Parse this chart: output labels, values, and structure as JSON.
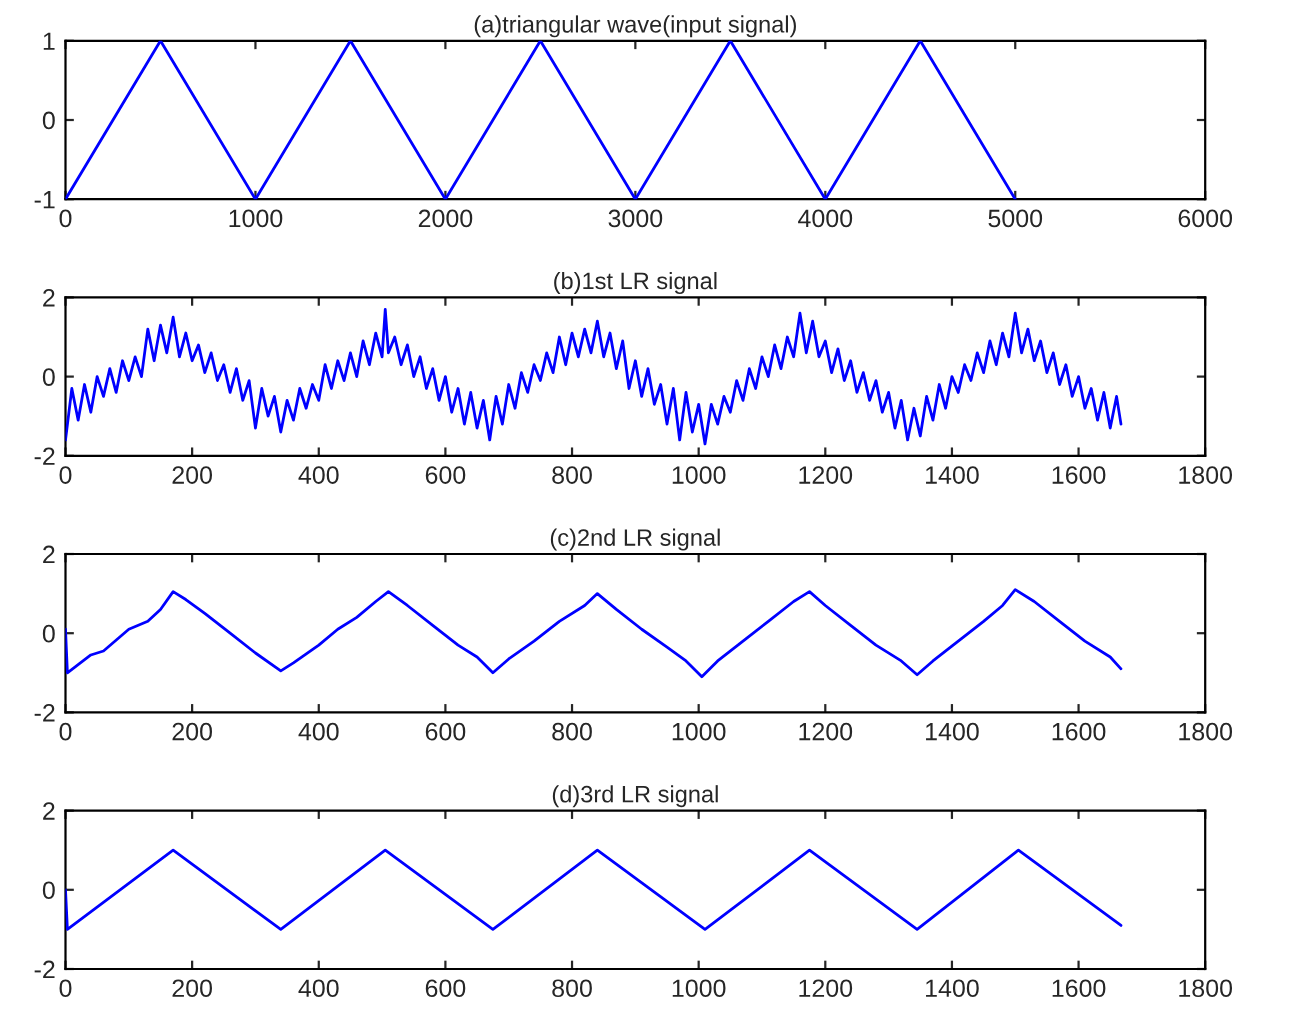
{
  "chart_data": [
    {
      "type": "line",
      "title": "(a)triangular wave(input signal)",
      "xlim": [
        0,
        6000
      ],
      "xticks": [
        0,
        1000,
        2000,
        3000,
        4000,
        5000,
        6000
      ],
      "ylim": [
        -1,
        1
      ],
      "yticks": [
        -1,
        0,
        1
      ],
      "grid": false,
      "legend": false,
      "series": [
        {
          "color": "#0000ff",
          "x": [
            0,
            500,
            1000,
            1500,
            2000,
            2500,
            3000,
            3500,
            4000,
            4500,
            5000
          ],
          "values": [
            -1,
            1,
            -1,
            1,
            -1,
            1,
            -1,
            1,
            -1,
            1,
            -1
          ]
        }
      ]
    },
    {
      "type": "line",
      "title": "(b)1st LR signal",
      "xlim": [
        0,
        1800
      ],
      "xticks": [
        0,
        200,
        400,
        600,
        800,
        1000,
        1200,
        1400,
        1600,
        1800
      ],
      "ylim": [
        -2,
        2
      ],
      "yticks": [
        -2,
        0,
        2
      ],
      "grid": false,
      "legend": false,
      "series": [
        {
          "color": "#0000ff",
          "x": [
            0,
            10,
            20,
            30,
            40,
            50,
            60,
            70,
            80,
            90,
            100,
            110,
            120,
            130,
            140,
            150,
            160,
            170,
            180,
            190,
            200,
            210,
            220,
            230,
            240,
            250,
            260,
            270,
            280,
            290,
            300,
            310,
            320,
            330,
            340,
            350,
            360,
            370,
            380,
            390,
            400,
            410,
            420,
            430,
            440,
            450,
            460,
            470,
            480,
            490,
            500,
            505,
            510,
            520,
            530,
            540,
            550,
            560,
            570,
            580,
            590,
            600,
            610,
            620,
            630,
            640,
            650,
            660,
            670,
            680,
            690,
            700,
            710,
            720,
            730,
            740,
            750,
            760,
            770,
            780,
            790,
            800,
            810,
            820,
            830,
            840,
            850,
            860,
            870,
            880,
            890,
            900,
            910,
            920,
            930,
            940,
            950,
            960,
            970,
            980,
            990,
            1000,
            1010,
            1020,
            1030,
            1040,
            1050,
            1060,
            1070,
            1080,
            1090,
            1100,
            1110,
            1120,
            1130,
            1140,
            1150,
            1160,
            1170,
            1180,
            1190,
            1200,
            1210,
            1220,
            1230,
            1240,
            1250,
            1260,
            1270,
            1280,
            1290,
            1300,
            1310,
            1320,
            1330,
            1340,
            1350,
            1360,
            1370,
            1380,
            1390,
            1400,
            1410,
            1420,
            1430,
            1440,
            1450,
            1460,
            1470,
            1480,
            1490,
            1500,
            1510,
            1520,
            1530,
            1540,
            1550,
            1560,
            1570,
            1580,
            1590,
            1600,
            1610,
            1620,
            1630,
            1640,
            1650,
            1660,
            1667
          ],
          "values": [
            -1.6,
            -0.3,
            -1.1,
            -0.2,
            -0.9,
            0.0,
            -0.5,
            0.2,
            -0.4,
            0.4,
            -0.1,
            0.5,
            0.0,
            1.2,
            0.4,
            1.3,
            0.6,
            1.5,
            0.5,
            1.1,
            0.4,
            0.8,
            0.1,
            0.6,
            -0.1,
            0.3,
            -0.4,
            0.2,
            -0.6,
            -0.1,
            -1.3,
            -0.3,
            -1.0,
            -0.5,
            -1.4,
            -0.6,
            -1.1,
            -0.3,
            -0.8,
            -0.2,
            -0.6,
            0.3,
            -0.3,
            0.4,
            -0.1,
            0.6,
            0.0,
            0.9,
            0.3,
            1.1,
            0.5,
            1.7,
            0.6,
            1.0,
            0.3,
            0.8,
            0.0,
            0.5,
            -0.3,
            0.2,
            -0.6,
            0.0,
            -0.9,
            -0.3,
            -1.2,
            -0.4,
            -1.3,
            -0.6,
            -1.6,
            -0.5,
            -1.2,
            -0.2,
            -0.8,
            0.1,
            -0.4,
            0.3,
            -0.1,
            0.6,
            0.1,
            1.0,
            0.3,
            1.1,
            0.5,
            1.2,
            0.6,
            1.4,
            0.5,
            1.1,
            0.2,
            0.9,
            -0.3,
            0.4,
            -0.5,
            0.2,
            -0.7,
            -0.2,
            -1.2,
            -0.3,
            -1.6,
            -0.4,
            -1.4,
            -0.7,
            -1.7,
            -0.7,
            -1.2,
            -0.5,
            -0.9,
            -0.1,
            -0.6,
            0.2,
            -0.3,
            0.5,
            0.0,
            0.8,
            0.2,
            1.0,
            0.5,
            1.6,
            0.6,
            1.4,
            0.5,
            0.9,
            0.1,
            0.7,
            -0.1,
            0.4,
            -0.4,
            0.1,
            -0.6,
            -0.1,
            -0.9,
            -0.4,
            -1.3,
            -0.6,
            -1.6,
            -0.8,
            -1.5,
            -0.5,
            -1.1,
            -0.2,
            -0.8,
            0.0,
            -0.4,
            0.3,
            -0.1,
            0.6,
            0.1,
            0.9,
            0.3,
            1.1,
            0.5,
            1.6,
            0.6,
            1.2,
            0.4,
            0.9,
            0.1,
            0.6,
            -0.2,
            0.3,
            -0.5,
            0.0,
            -0.8,
            -0.3,
            -1.1,
            -0.4,
            -1.3,
            -0.5,
            -1.2
          ]
        }
      ]
    },
    {
      "type": "line",
      "title": "(c)2nd LR signal",
      "xlim": [
        0,
        1800
      ],
      "xticks": [
        0,
        200,
        400,
        600,
        800,
        1000,
        1200,
        1400,
        1600,
        1800
      ],
      "ylim": [
        -2,
        2
      ],
      "yticks": [
        -2,
        0,
        2
      ],
      "grid": false,
      "legend": false,
      "series": [
        {
          "color": "#0000ff",
          "x": [
            0,
            3,
            40,
            60,
            100,
            130,
            150,
            170,
            190,
            220,
            260,
            300,
            340,
            360,
            400,
            430,
            460,
            490,
            510,
            540,
            580,
            620,
            650,
            675,
            700,
            740,
            780,
            820,
            840,
            870,
            910,
            950,
            980,
            1005,
            1030,
            1070,
            1110,
            1150,
            1175,
            1200,
            1240,
            1280,
            1320,
            1345,
            1370,
            1410,
            1450,
            1480,
            1500,
            1530,
            1570,
            1610,
            1650,
            1667
          ],
          "values": [
            0.1,
            -1.0,
            -0.55,
            -0.45,
            0.1,
            0.3,
            0.6,
            1.05,
            0.85,
            0.5,
            0.0,
            -0.5,
            -0.95,
            -0.75,
            -0.3,
            0.1,
            0.4,
            0.8,
            1.05,
            0.7,
            0.2,
            -0.3,
            -0.6,
            -1.0,
            -0.65,
            -0.2,
            0.3,
            0.7,
            1.0,
            0.6,
            0.1,
            -0.35,
            -0.7,
            -1.1,
            -0.7,
            -0.2,
            0.3,
            0.8,
            1.05,
            0.7,
            0.2,
            -0.3,
            -0.7,
            -1.05,
            -0.7,
            -0.2,
            0.3,
            0.7,
            1.1,
            0.8,
            0.3,
            -0.2,
            -0.6,
            -0.9
          ]
        }
      ]
    },
    {
      "type": "line",
      "title": "(d)3rd LR signal",
      "xlim": [
        0,
        1800
      ],
      "xticks": [
        0,
        200,
        400,
        600,
        800,
        1000,
        1200,
        1400,
        1600,
        1800
      ],
      "ylim": [
        -2,
        2
      ],
      "yticks": [
        -2,
        0,
        2
      ],
      "grid": false,
      "legend": false,
      "series": [
        {
          "color": "#0000ff",
          "x": [
            0,
            3,
            170,
            340,
            505,
            675,
            840,
            1010,
            1175,
            1345,
            1505,
            1667
          ],
          "values": [
            0.0,
            -1.0,
            1.0,
            -1.0,
            1.0,
            -1.0,
            1.0,
            -1.0,
            1.0,
            -1.0,
            1.0,
            -0.9
          ]
        }
      ]
    }
  ]
}
